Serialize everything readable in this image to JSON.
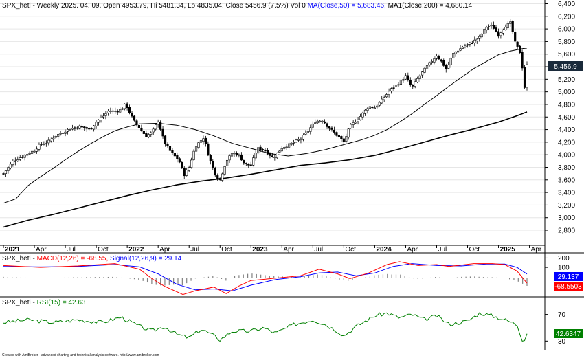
{
  "header": {
    "main_prefix": "SPX_heti - Weekly 2025. 04. 09. Open 4953.79, Hi 5481.34, Lo 4835.04, Close 5456.9 (7.5%) Vol 0 ",
    "ma50_text": "MA(Close,50) = 5,683.46, ",
    "ma200_text": "MA1(Close,200) = 4,680.14",
    "macd_prefix": "SPX_heti - ",
    "macd_text": "MACD(12,26) = -68.55, ",
    "signal_text": "Signal(12,26,9) = 29.14",
    "rsi_prefix": "SPX_heti - ",
    "rsi_text": "RSI(15) = 42.63"
  },
  "footer": "Created with AmiBroker - advanced charting and technical analysis software. http://www.amibroker.com",
  "colors": {
    "up": "#ffffff",
    "down": "#000000",
    "ma50": "#000000",
    "ma200": "#000000",
    "macd": "#ff0000",
    "signal": "#0000ff",
    "rsi": "#008000",
    "badge_price": "#1a2a3a",
    "badge_signal": "#0000ff",
    "badge_macd": "#ff0000",
    "badge_rsi": "#008000"
  },
  "chart_data": {
    "type": "candlestick",
    "price_axis": {
      "ticks": [
        "2,800",
        "3,000",
        "3,200",
        "3,400",
        "3,600",
        "3,800",
        "4,000",
        "4,200",
        "4,400",
        "4,600",
        "4,800",
        "5,000",
        "5,200",
        "5,400",
        "5,600",
        "5,800",
        "6,000",
        "6,200",
        "6,400"
      ],
      "range": [
        2560,
        6460
      ]
    },
    "last_price_label": "5,456.9",
    "x_axis": {
      "labels": [
        {
          "text": "2021",
          "bold": true,
          "t": 0
        },
        {
          "text": "Apr",
          "bold": false,
          "t": 0.25
        },
        {
          "text": "Jul",
          "bold": false,
          "t": 0.5
        },
        {
          "text": "Oct",
          "bold": false,
          "t": 0.75
        },
        {
          "text": "2022",
          "bold": true,
          "t": 1.0
        },
        {
          "text": "Apr",
          "bold": false,
          "t": 1.25
        },
        {
          "text": "Jul",
          "bold": false,
          "t": 1.5
        },
        {
          "text": "Oct",
          "bold": false,
          "t": 1.75
        },
        {
          "text": "2023",
          "bold": true,
          "t": 2.0
        },
        {
          "text": "Apr",
          "bold": false,
          "t": 2.25
        },
        {
          "text": "Jul",
          "bold": false,
          "t": 2.5
        },
        {
          "text": "Oct",
          "bold": false,
          "t": 2.75
        },
        {
          "text": "2024",
          "bold": true,
          "t": 3.0
        },
        {
          "text": "Apr",
          "bold": false,
          "t": 3.25
        },
        {
          "text": "Jul",
          "bold": false,
          "t": 3.5
        },
        {
          "text": "Oct",
          "bold": false,
          "t": 3.75
        },
        {
          "text": "2025",
          "bold": true,
          "t": 4.0
        },
        {
          "text": "Apr",
          "bold": false,
          "t": 4.25
        }
      ]
    },
    "close_path": [
      [
        0,
        3700
      ],
      [
        0.04,
        3800
      ],
      [
        0.08,
        3900
      ],
      [
        0.15,
        3970
      ],
      [
        0.2,
        4020
      ],
      [
        0.25,
        4070
      ],
      [
        0.3,
        4170
      ],
      [
        0.35,
        4190
      ],
      [
        0.42,
        4300
      ],
      [
        0.5,
        4380
      ],
      [
        0.55,
        4420
      ],
      [
        0.62,
        4450
      ],
      [
        0.7,
        4400
      ],
      [
        0.75,
        4520
      ],
      [
        0.8,
        4600
      ],
      [
        0.85,
        4700
      ],
      [
        0.9,
        4690
      ],
      [
        0.95,
        4720
      ],
      [
        0.98,
        4790
      ],
      [
        1.0,
        4760
      ],
      [
        1.05,
        4550
      ],
      [
        1.1,
        4420
      ],
      [
        1.15,
        4300
      ],
      [
        1.2,
        4350
      ],
      [
        1.25,
        4540
      ],
      [
        1.3,
        4200
      ],
      [
        1.35,
        4050
      ],
      [
        1.42,
        3900
      ],
      [
        1.46,
        3680
      ],
      [
        1.5,
        3800
      ],
      [
        1.55,
        4130
      ],
      [
        1.62,
        4280
      ],
      [
        1.66,
        3960
      ],
      [
        1.72,
        3650
      ],
      [
        1.75,
        3600
      ],
      [
        1.8,
        3900
      ],
      [
        1.85,
        4030
      ],
      [
        1.9,
        4000
      ],
      [
        1.95,
        3850
      ],
      [
        2.0,
        3830
      ],
      [
        2.05,
        4100
      ],
      [
        2.1,
        4090
      ],
      [
        2.18,
        3950
      ],
      [
        2.25,
        4110
      ],
      [
        2.32,
        4170
      ],
      [
        2.4,
        4250
      ],
      [
        2.45,
        4350
      ],
      [
        2.52,
        4530
      ],
      [
        2.58,
        4550
      ],
      [
        2.62,
        4450
      ],
      [
        2.7,
        4300
      ],
      [
        2.75,
        4200
      ],
      [
        2.8,
        4450
      ],
      [
        2.88,
        4600
      ],
      [
        2.95,
        4770
      ],
      [
        3.0,
        4750
      ],
      [
        3.05,
        4850
      ],
      [
        3.12,
        5020
      ],
      [
        3.2,
        5150
      ],
      [
        3.25,
        5250
      ],
      [
        3.3,
        5060
      ],
      [
        3.35,
        5220
      ],
      [
        3.42,
        5400
      ],
      [
        3.5,
        5580
      ],
      [
        3.55,
        5450
      ],
      [
        3.58,
        5350
      ],
      [
        3.63,
        5600
      ],
      [
        3.7,
        5700
      ],
      [
        3.78,
        5780
      ],
      [
        3.85,
        5870
      ],
      [
        3.9,
        6030
      ],
      [
        3.95,
        6050
      ],
      [
        4.0,
        5900
      ],
      [
        4.05,
        6040
      ],
      [
        4.1,
        6100
      ],
      [
        4.13,
        5800
      ],
      [
        4.18,
        5600
      ],
      [
        4.21,
        5060
      ],
      [
        4.23,
        5420
      ]
    ],
    "ma50_path": [
      [
        0,
        3230
      ],
      [
        0.1,
        3300
      ],
      [
        0.2,
        3510
      ],
      [
        0.3,
        3650
      ],
      [
        0.4,
        3780
      ],
      [
        0.5,
        3920
      ],
      [
        0.6,
        4050
      ],
      [
        0.7,
        4170
      ],
      [
        0.8,
        4280
      ],
      [
        0.9,
        4380
      ],
      [
        1.0,
        4440
      ],
      [
        1.1,
        4490
      ],
      [
        1.25,
        4500
      ],
      [
        1.4,
        4470
      ],
      [
        1.55,
        4400
      ],
      [
        1.7,
        4300
      ],
      [
        1.85,
        4180
      ],
      [
        2.0,
        4100
      ],
      [
        2.15,
        4020
      ],
      [
        2.3,
        3980
      ],
      [
        2.45,
        4020
      ],
      [
        2.6,
        4080
      ],
      [
        2.75,
        4160
      ],
      [
        2.9,
        4240
      ],
      [
        3.0,
        4310
      ],
      [
        3.1,
        4400
      ],
      [
        3.2,
        4520
      ],
      [
        3.3,
        4650
      ],
      [
        3.4,
        4800
      ],
      [
        3.5,
        4940
      ],
      [
        3.6,
        5090
      ],
      [
        3.7,
        5230
      ],
      [
        3.8,
        5370
      ],
      [
        3.9,
        5480
      ],
      [
        4.0,
        5590
      ],
      [
        4.1,
        5650
      ],
      [
        4.2,
        5690
      ],
      [
        4.23,
        5683
      ]
    ],
    "ma200_path": [
      [
        0,
        2850
      ],
      [
        0.2,
        2960
      ],
      [
        0.4,
        3050
      ],
      [
        0.6,
        3150
      ],
      [
        0.8,
        3250
      ],
      [
        1.0,
        3350
      ],
      [
        1.2,
        3440
      ],
      [
        1.4,
        3520
      ],
      [
        1.6,
        3580
      ],
      [
        1.8,
        3630
      ],
      [
        2.0,
        3690
      ],
      [
        2.2,
        3760
      ],
      [
        2.4,
        3830
      ],
      [
        2.6,
        3870
      ],
      [
        2.8,
        3920
      ],
      [
        3.0,
        3990
      ],
      [
        3.2,
        4090
      ],
      [
        3.4,
        4200
      ],
      [
        3.6,
        4310
      ],
      [
        3.8,
        4410
      ],
      [
        4.0,
        4520
      ],
      [
        4.15,
        4620
      ],
      [
        4.23,
        4680
      ]
    ],
    "macd": {
      "axis_ticks": [
        "100",
        "200"
      ],
      "range": [
        -200,
        240
      ],
      "macd_label": "-68.5503",
      "signal_label": "29.137",
      "macd_path": [
        [
          0,
          120
        ],
        [
          0.3,
          100
        ],
        [
          0.6,
          115
        ],
        [
          0.9,
          140
        ],
        [
          1.1,
          80
        ],
        [
          1.2,
          -20
        ],
        [
          1.3,
          -100
        ],
        [
          1.45,
          -190
        ],
        [
          1.55,
          -150
        ],
        [
          1.7,
          -110
        ],
        [
          1.8,
          -180
        ],
        [
          1.9,
          -100
        ],
        [
          2.0,
          -40
        ],
        [
          2.2,
          -15
        ],
        [
          2.4,
          10
        ],
        [
          2.55,
          80
        ],
        [
          2.7,
          30
        ],
        [
          2.8,
          -20
        ],
        [
          2.95,
          40
        ],
        [
          3.1,
          130
        ],
        [
          3.2,
          160
        ],
        [
          3.35,
          120
        ],
        [
          3.5,
          130
        ],
        [
          3.6,
          110
        ],
        [
          3.8,
          140
        ],
        [
          3.95,
          140
        ],
        [
          4.05,
          130
        ],
        [
          4.15,
          60
        ],
        [
          4.2,
          -20
        ],
        [
          4.23,
          -68
        ]
      ],
      "signal_path": [
        [
          0,
          110
        ],
        [
          0.3,
          105
        ],
        [
          0.6,
          110
        ],
        [
          0.9,
          130
        ],
        [
          1.1,
          105
        ],
        [
          1.25,
          30
        ],
        [
          1.4,
          -80
        ],
        [
          1.55,
          -140
        ],
        [
          1.7,
          -130
        ],
        [
          1.85,
          -150
        ],
        [
          2.0,
          -90
        ],
        [
          2.2,
          -30
        ],
        [
          2.4,
          0
        ],
        [
          2.55,
          40
        ],
        [
          2.7,
          50
        ],
        [
          2.85,
          10
        ],
        [
          3.0,
          40
        ],
        [
          3.15,
          110
        ],
        [
          3.3,
          140
        ],
        [
          3.5,
          120
        ],
        [
          3.7,
          115
        ],
        [
          3.9,
          135
        ],
        [
          4.05,
          135
        ],
        [
          4.15,
          100
        ],
        [
          4.23,
          29
        ]
      ]
    },
    "rsi": {
      "axis_ticks": [
        "30",
        "70"
      ],
      "range": [
        20,
        82
      ],
      "last_label": "42.6347",
      "path": [
        [
          0,
          58
        ],
        [
          0.2,
          62
        ],
        [
          0.4,
          58
        ],
        [
          0.6,
          62
        ],
        [
          0.8,
          58
        ],
        [
          0.95,
          66
        ],
        [
          1.1,
          52
        ],
        [
          1.2,
          45
        ],
        [
          1.3,
          52
        ],
        [
          1.4,
          40
        ],
        [
          1.5,
          35
        ],
        [
          1.6,
          48
        ],
        [
          1.7,
          38
        ],
        [
          1.75,
          32
        ],
        [
          1.85,
          45
        ],
        [
          2.0,
          45
        ],
        [
          2.1,
          50
        ],
        [
          2.2,
          42
        ],
        [
          2.35,
          55
        ],
        [
          2.5,
          62
        ],
        [
          2.6,
          55
        ],
        [
          2.7,
          45
        ],
        [
          2.75,
          38
        ],
        [
          2.85,
          52
        ],
        [
          3.0,
          68
        ],
        [
          3.1,
          72
        ],
        [
          3.2,
          65
        ],
        [
          3.3,
          70
        ],
        [
          3.4,
          62
        ],
        [
          3.5,
          68
        ],
        [
          3.6,
          55
        ],
        [
          3.75,
          60
        ],
        [
          3.85,
          72
        ],
        [
          3.95,
          68
        ],
        [
          4.05,
          62
        ],
        [
          4.15,
          55
        ],
        [
          4.2,
          28
        ],
        [
          4.23,
          42
        ]
      ]
    }
  }
}
